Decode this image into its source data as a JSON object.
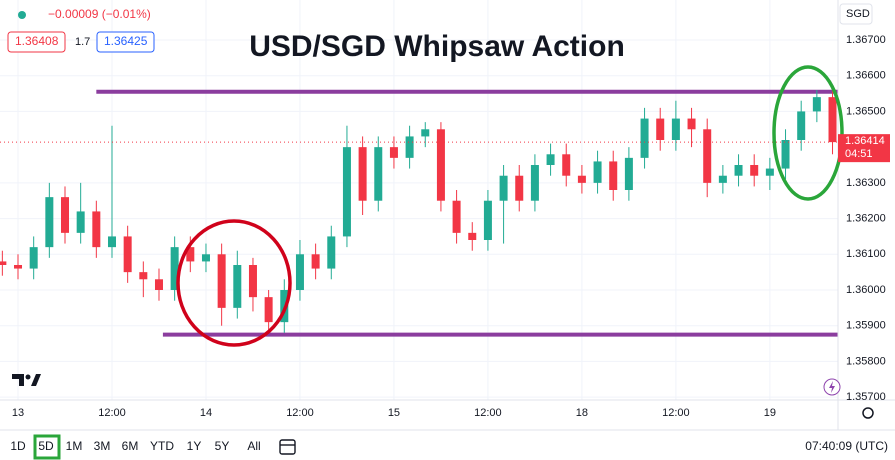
{
  "chart_data": {
    "type": "candlestick",
    "title": "USD/SGD Whipsaw Action",
    "currency": "SGD",
    "change": "−0.00009 (−0.01%)",
    "bid": "1.36408",
    "spread": "1.7",
    "ask": "1.36425",
    "countdown": "04:51",
    "timeframes": [
      "1D",
      "5D",
      "1M",
      "3M",
      "6M",
      "YTD",
      "1Y",
      "5Y",
      "All"
    ],
    "active_timeframe_index": 1,
    "clock": "07:40:09 (UTC)",
    "up_color": "#22ab94",
    "down_color": "#f23645",
    "level_color": "#8b3d9e",
    "grid": true,
    "x": [
      -2,
      0,
      2,
      4,
      6,
      8,
      10,
      12,
      14,
      16,
      18,
      20,
      22,
      24,
      26,
      28,
      30,
      32,
      34,
      36,
      38,
      40,
      42,
      44,
      46,
      48,
      50,
      52,
      54,
      56,
      58,
      60,
      62,
      64,
      66,
      68,
      70,
      72,
      74,
      76,
      78,
      80,
      82,
      84,
      86,
      88,
      90,
      92,
      94,
      96,
      98,
      100,
      102,
      104
    ],
    "open": [
      1.3608,
      1.3607,
      1.3606,
      1.3612,
      1.3626,
      1.3616,
      1.3622,
      1.3612,
      1.3615,
      1.3605,
      1.3603,
      1.36,
      1.3612,
      1.3608,
      1.361,
      1.3595,
      1.3607,
      1.3598,
      1.3591,
      1.36,
      1.361,
      1.3606,
      1.3615,
      1.364,
      1.3625,
      1.364,
      1.3637,
      1.3643,
      1.3645,
      1.3625,
      1.3616,
      1.3614,
      1.3625,
      1.3632,
      1.3625,
      1.3635,
      1.3638,
      1.3632,
      1.363,
      1.3636,
      1.3628,
      1.3637,
      1.3648,
      1.3642,
      1.3648,
      1.3645,
      1.363,
      1.3632,
      1.3635,
      1.3632,
      1.3634,
      1.3642,
      1.365,
      1.3654
    ],
    "high": [
      1.3611,
      1.361,
      1.3615,
      1.363,
      1.3629,
      1.363,
      1.3625,
      1.3646,
      1.3618,
      1.3608,
      1.3606,
      1.3615,
      1.3615,
      1.3613,
      1.3613,
      1.3611,
      1.3609,
      1.36,
      1.3603,
      1.3614,
      1.3613,
      1.3618,
      1.3646,
      1.3643,
      1.3643,
      1.3643,
      1.3646,
      1.3647,
      1.3647,
      1.3628,
      1.3619,
      1.3628,
      1.3635,
      1.3635,
      1.3638,
      1.3641,
      1.3641,
      1.3635,
      1.3639,
      1.3639,
      1.364,
      1.3651,
      1.3651,
      1.3653,
      1.3651,
      1.3648,
      1.3635,
      1.3638,
      1.3638,
      1.3637,
      1.3645,
      1.3653,
      1.3656,
      1.3656
    ],
    "low": [
      1.3604,
      1.3603,
      1.3603,
      1.3609,
      1.3613,
      1.3613,
      1.3609,
      1.3609,
      1.3602,
      1.3598,
      1.3597,
      1.3597,
      1.3605,
      1.3605,
      1.359,
      1.3592,
      1.3594,
      1.3588,
      1.3588,
      1.3597,
      1.3603,
      1.3603,
      1.3612,
      1.3621,
      1.3622,
      1.3634,
      1.3634,
      1.364,
      1.3622,
      1.3613,
      1.3611,
      1.3611,
      1.3613,
      1.3622,
      1.3622,
      1.3632,
      1.3629,
      1.3627,
      1.3627,
      1.3625,
      1.3625,
      1.3634,
      1.3639,
      1.3639,
      1.364,
      1.3626,
      1.3627,
      1.3629,
      1.3629,
      1.3628,
      1.3631,
      1.3639,
      1.3647,
      1.3638
    ],
    "close": [
      1.3607,
      1.3606,
      1.3612,
      1.3626,
      1.3616,
      1.3622,
      1.3612,
      1.3615,
      1.3605,
      1.3603,
      1.36,
      1.3612,
      1.3608,
      1.361,
      1.3595,
      1.3607,
      1.3598,
      1.3591,
      1.36,
      1.361,
      1.3606,
      1.3615,
      1.364,
      1.3625,
      1.364,
      1.3637,
      1.3643,
      1.3645,
      1.3625,
      1.3616,
      1.3614,
      1.3625,
      1.3632,
      1.3625,
      1.3635,
      1.3638,
      1.3632,
      1.363,
      1.3636,
      1.3628,
      1.3637,
      1.3648,
      1.3642,
      1.3648,
      1.3645,
      1.363,
      1.3632,
      1.3635,
      1.3632,
      1.3634,
      1.3642,
      1.365,
      1.3654,
      1.36414
    ],
    "levels": [
      {
        "value": 1.36555,
        "start": 10
      },
      {
        "value": 1.35875,
        "start": 18.5
      }
    ],
    "xlim": [
      -2.3,
      104.7
    ],
    "ylim": [
      1.35692,
      1.36812
    ],
    "xticks": [
      {
        "value": 0,
        "label": "13"
      },
      {
        "value": 12,
        "label": "12:00"
      },
      {
        "value": 24,
        "label": "14"
      },
      {
        "value": 36,
        "label": "12:00"
      },
      {
        "value": 48,
        "label": "15"
      },
      {
        "value": 60,
        "label": "12:00"
      },
      {
        "value": 72,
        "label": "18"
      },
      {
        "value": 84,
        "label": "12:00"
      },
      {
        "value": 96,
        "label": "19"
      }
    ],
    "yticks": [
      {
        "value": 1.357,
        "label": "1.35700"
      },
      {
        "value": 1.358,
        "label": "1.35800"
      },
      {
        "value": 1.359,
        "label": "1.35900"
      },
      {
        "value": 1.36,
        "label": "1.36000"
      },
      {
        "value": 1.361,
        "label": "1.36100"
      },
      {
        "value": 1.362,
        "label": "1.36200"
      },
      {
        "value": 1.363,
        "label": "1.36300"
      },
      {
        "value": 1.365,
        "label": "1.36500"
      },
      {
        "value": 1.366,
        "label": "1.36600"
      },
      {
        "value": 1.367,
        "label": "1.36700"
      }
    ]
  }
}
